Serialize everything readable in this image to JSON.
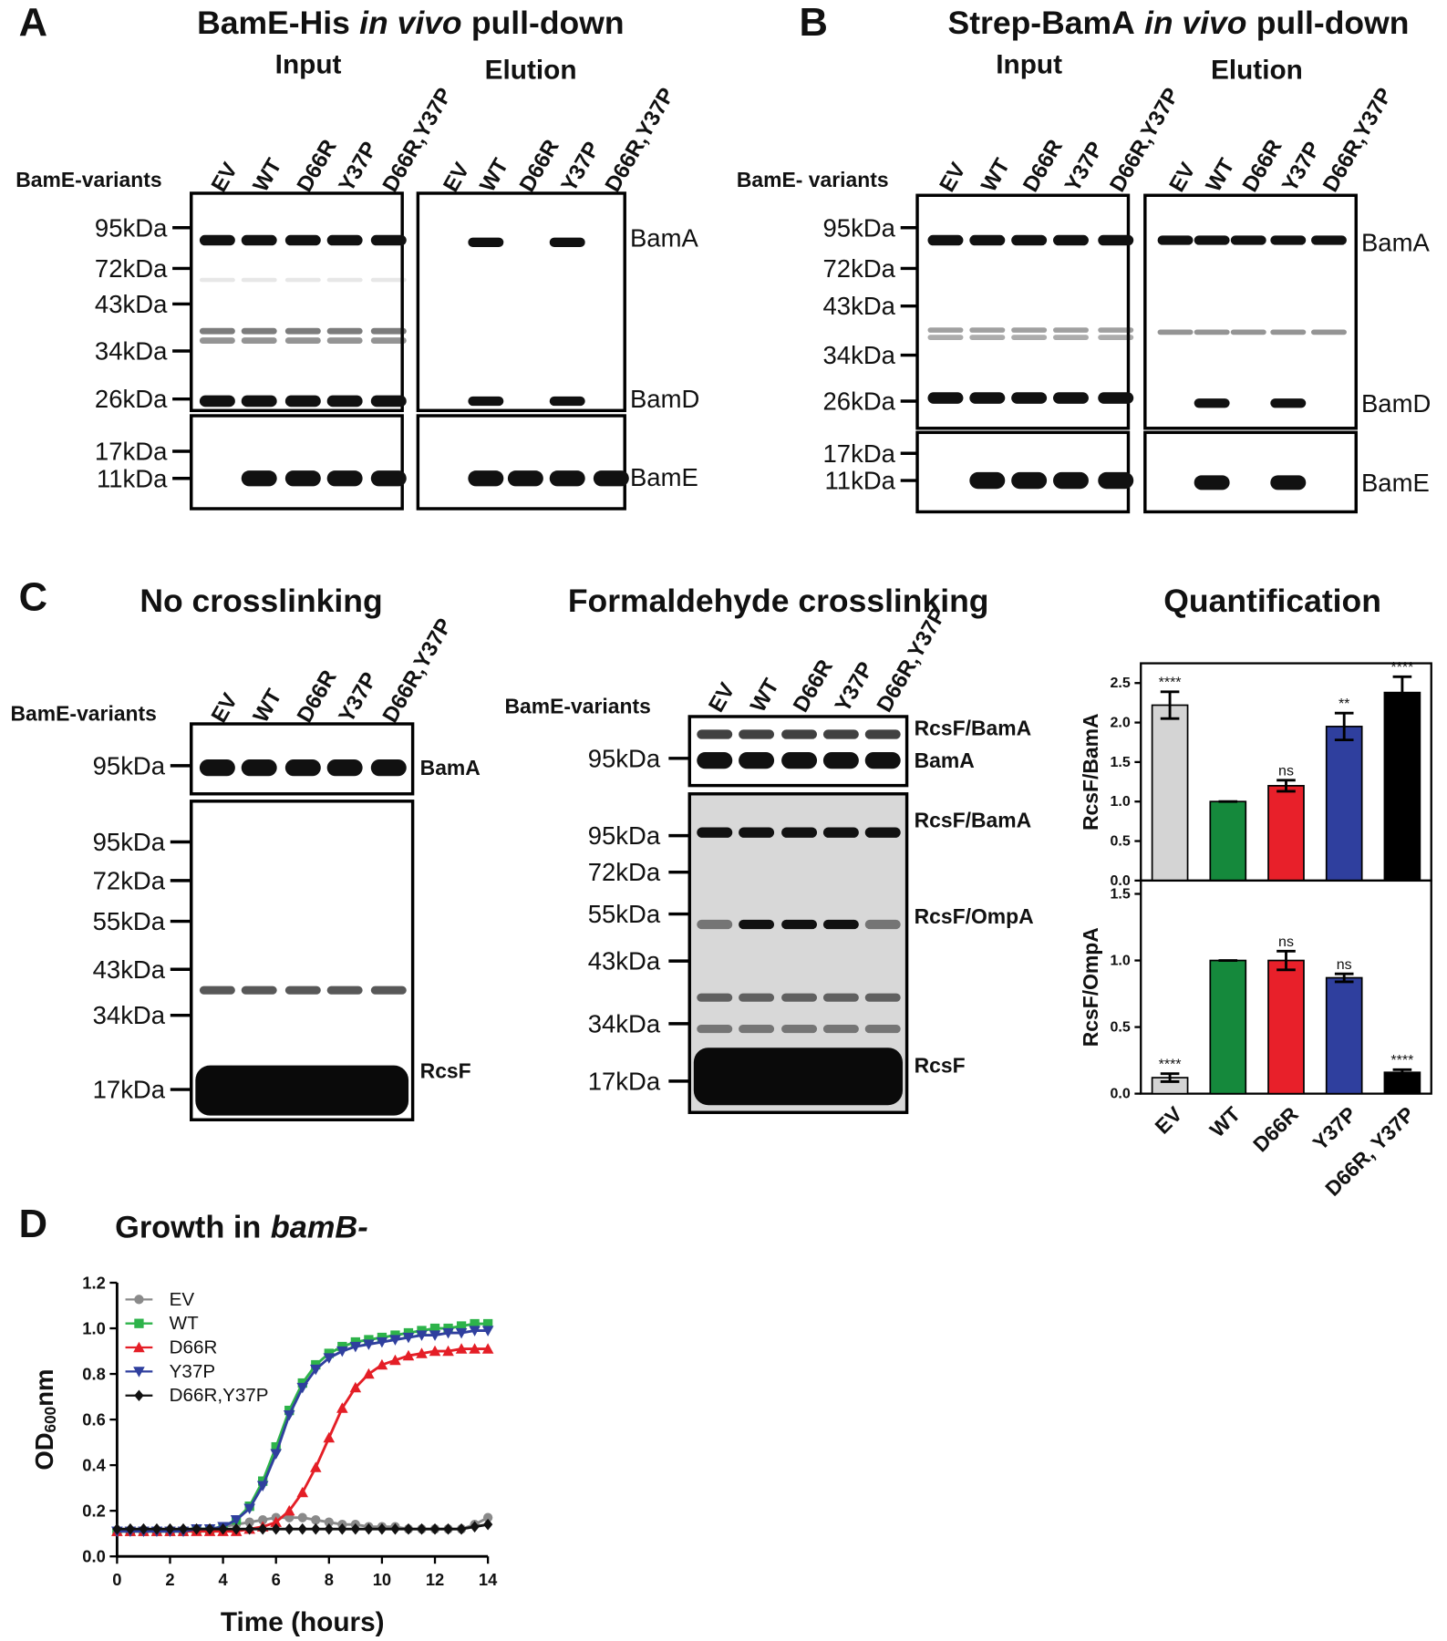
{
  "panel_a": {
    "letter": "A",
    "title": {
      "before": "BamE-His",
      "italic": "in vivo",
      "after": "pull-down"
    },
    "input": "Input",
    "elution": "Elution",
    "row_label": "BamE-variants",
    "lanes": [
      "EV",
      "WT",
      "D66R",
      "Y37P",
      "D66R,Y37P"
    ],
    "markers": [
      "95kDa",
      "72kDa",
      "43kDa",
      "34kDa",
      "26kDa",
      "17kDa",
      "11kDa"
    ],
    "bands": [
      "BamA",
      "BamD",
      "BamE"
    ]
  },
  "panel_b": {
    "letter": "B",
    "title": {
      "before": "Strep-BamA",
      "italic": "in vivo",
      "after": "pull-down"
    },
    "input": "Input",
    "elution": "Elution",
    "row_label": "BamE- variants",
    "lanes": [
      "EV",
      "WT",
      "D66R",
      "Y37P",
      "D66R,Y37P"
    ],
    "markers": [
      "95kDa",
      "72kDa",
      "43kDa",
      "34kDa",
      "26kDa",
      "17kDa",
      "11kDa"
    ],
    "bands": [
      "BamA",
      "BamD",
      "BamE"
    ]
  },
  "panel_c": {
    "letter": "C",
    "blots": [
      {
        "title": "No crosslinking",
        "row_label": "BamE-variants",
        "lanes": [
          "EV",
          "WT",
          "D66R",
          "Y37P",
          "D66R,Y37P"
        ],
        "top_markers": [
          "95kDa"
        ],
        "top_bands": [
          "BamA"
        ],
        "markers": [
          "95kDa",
          "72kDa",
          "55kDa",
          "43kDa",
          "34kDa",
          "17kDa"
        ],
        "bands": [
          "RcsF"
        ]
      },
      {
        "title": "Formaldehyde crosslinking",
        "row_label": "BamE-variants",
        "lanes": [
          "EV",
          "WT",
          "D66R",
          "Y37P",
          "D66R,Y37P"
        ],
        "top_markers": [
          "95kDa"
        ],
        "top_bands": [
          "RcsF/BamA",
          "BamA"
        ],
        "markers": [
          "95kDa",
          "72kDa",
          "55kDa",
          "43kDa",
          "34kDa",
          "17kDa"
        ],
        "bands": [
          "RcsF/BamA",
          "RcsF/OmpA",
          "RcsF"
        ]
      }
    ],
    "quant_title": "Quantification"
  },
  "panel_d": {
    "letter": "D",
    "title": {
      "before": "Growth in",
      "italic": "bamB-"
    }
  },
  "chart_data": [
    {
      "type": "bar",
      "ylabel": "RcsF/BamA",
      "categories": [
        null,
        null,
        null,
        null,
        null
      ],
      "values": [
        2.22,
        1.0,
        1.2,
        1.95,
        2.38
      ],
      "errors": [
        0.17,
        0,
        0.07,
        0.17,
        0.2
      ],
      "significance": [
        "****",
        null,
        "ns",
        "**",
        "****"
      ],
      "colors": [
        "#d4d4d4",
        "#15893c",
        "#e8202a",
        "#2f3f9e",
        "#000000"
      ],
      "ylim": [
        0,
        2.75
      ],
      "yticks": [
        {
          "value": 0,
          "label": "0.0"
        },
        0.5,
        {
          "value": 1,
          "label": "1.0"
        },
        1.5,
        {
          "value": 2,
          "label": "2.0"
        },
        2.5
      ]
    },
    {
      "type": "bar",
      "ylabel": "RcsF/OmpA",
      "categories": [
        "EV",
        "WT",
        "D66R",
        "Y37P",
        "D66R, Y37P"
      ],
      "values": [
        0.12,
        1.0,
        1.0,
        0.87,
        0.16
      ],
      "errors": [
        0.03,
        0,
        0.07,
        0.03,
        0.02
      ],
      "significance": [
        "****",
        null,
        "ns",
        "ns",
        "****"
      ],
      "colors": [
        "#d4d4d4",
        "#15893c",
        "#e8202a",
        "#2f3f9e",
        "#000000"
      ],
      "ylim": [
        0,
        1.6
      ],
      "yticks": [
        {
          "value": 0,
          "label": "0.0"
        },
        0.5,
        {
          "value": 1,
          "label": "1.0"
        },
        1.5
      ]
    },
    {
      "type": "line",
      "xlabel": "Time (hours)",
      "ylabel": {
        "main": "OD",
        "sub": "600",
        "unit": "nm"
      },
      "x": [
        0,
        0.5,
        1,
        1.5,
        2,
        2.5,
        3,
        3.5,
        4,
        4.5,
        5,
        5.5,
        6,
        6.5,
        7,
        7.5,
        8,
        8.5,
        9,
        9.5,
        10,
        10.5,
        11,
        11.5,
        12,
        12.5,
        13,
        13.5,
        14
      ],
      "xlim": [
        0,
        14
      ],
      "xticks": [
        0,
        2,
        4,
        6,
        8,
        10,
        12,
        14
      ],
      "ylim": [
        0,
        1.2
      ],
      "yticks": [
        {
          "value": 0,
          "label": "0.0"
        },
        0.2,
        0.4,
        0.6,
        0.8,
        {
          "value": 1,
          "label": "1.0"
        },
        1.2
      ],
      "legend": "top-left",
      "series": [
        {
          "name": "EV",
          "color": "#8a8a8a",
          "marker": "circle",
          "values": [
            0.11,
            0.11,
            0.11,
            0.11,
            0.11,
            0.11,
            0.12,
            0.12,
            0.13,
            0.14,
            0.15,
            0.16,
            0.17,
            0.17,
            0.17,
            0.16,
            0.15,
            0.14,
            0.14,
            0.13,
            0.13,
            0.13,
            0.12,
            0.12,
            0.12,
            0.12,
            0.12,
            0.14,
            0.17
          ]
        },
        {
          "name": "WT",
          "color": "#2db34a",
          "marker": "square",
          "values": [
            0.11,
            0.11,
            0.11,
            0.11,
            0.11,
            0.11,
            0.12,
            0.12,
            0.13,
            0.16,
            0.22,
            0.33,
            0.48,
            0.64,
            0.76,
            0.84,
            0.89,
            0.92,
            0.94,
            0.95,
            0.96,
            0.97,
            0.98,
            0.99,
            1.0,
            1.0,
            1.01,
            1.02,
            1.02
          ]
        },
        {
          "name": "D66R",
          "color": "#e41e26",
          "marker": "triangle-up",
          "values": [
            0.11,
            0.11,
            0.11,
            0.11,
            0.11,
            0.11,
            0.11,
            0.11,
            0.11,
            0.11,
            0.12,
            0.13,
            0.15,
            0.2,
            0.28,
            0.39,
            0.52,
            0.65,
            0.74,
            0.8,
            0.84,
            0.86,
            0.88,
            0.89,
            0.9,
            0.9,
            0.91,
            0.91,
            0.91
          ]
        },
        {
          "name": "Y37P",
          "color": "#2f3f9e",
          "marker": "triangle-down",
          "values": [
            0.11,
            0.11,
            0.11,
            0.11,
            0.11,
            0.11,
            0.12,
            0.12,
            0.13,
            0.16,
            0.21,
            0.31,
            0.45,
            0.62,
            0.74,
            0.82,
            0.87,
            0.9,
            0.92,
            0.93,
            0.94,
            0.95,
            0.96,
            0.97,
            0.97,
            0.98,
            0.98,
            0.99,
            0.99
          ]
        },
        {
          "name": "D66R,Y37P",
          "color": "#111111",
          "marker": "diamond",
          "values": [
            0.12,
            0.12,
            0.12,
            0.12,
            0.12,
            0.12,
            0.12,
            0.12,
            0.12,
            0.12,
            0.12,
            0.12,
            0.12,
            0.12,
            0.12,
            0.12,
            0.12,
            0.12,
            0.12,
            0.12,
            0.12,
            0.12,
            0.12,
            0.12,
            0.12,
            0.12,
            0.12,
            0.13,
            0.14
          ]
        }
      ]
    }
  ]
}
